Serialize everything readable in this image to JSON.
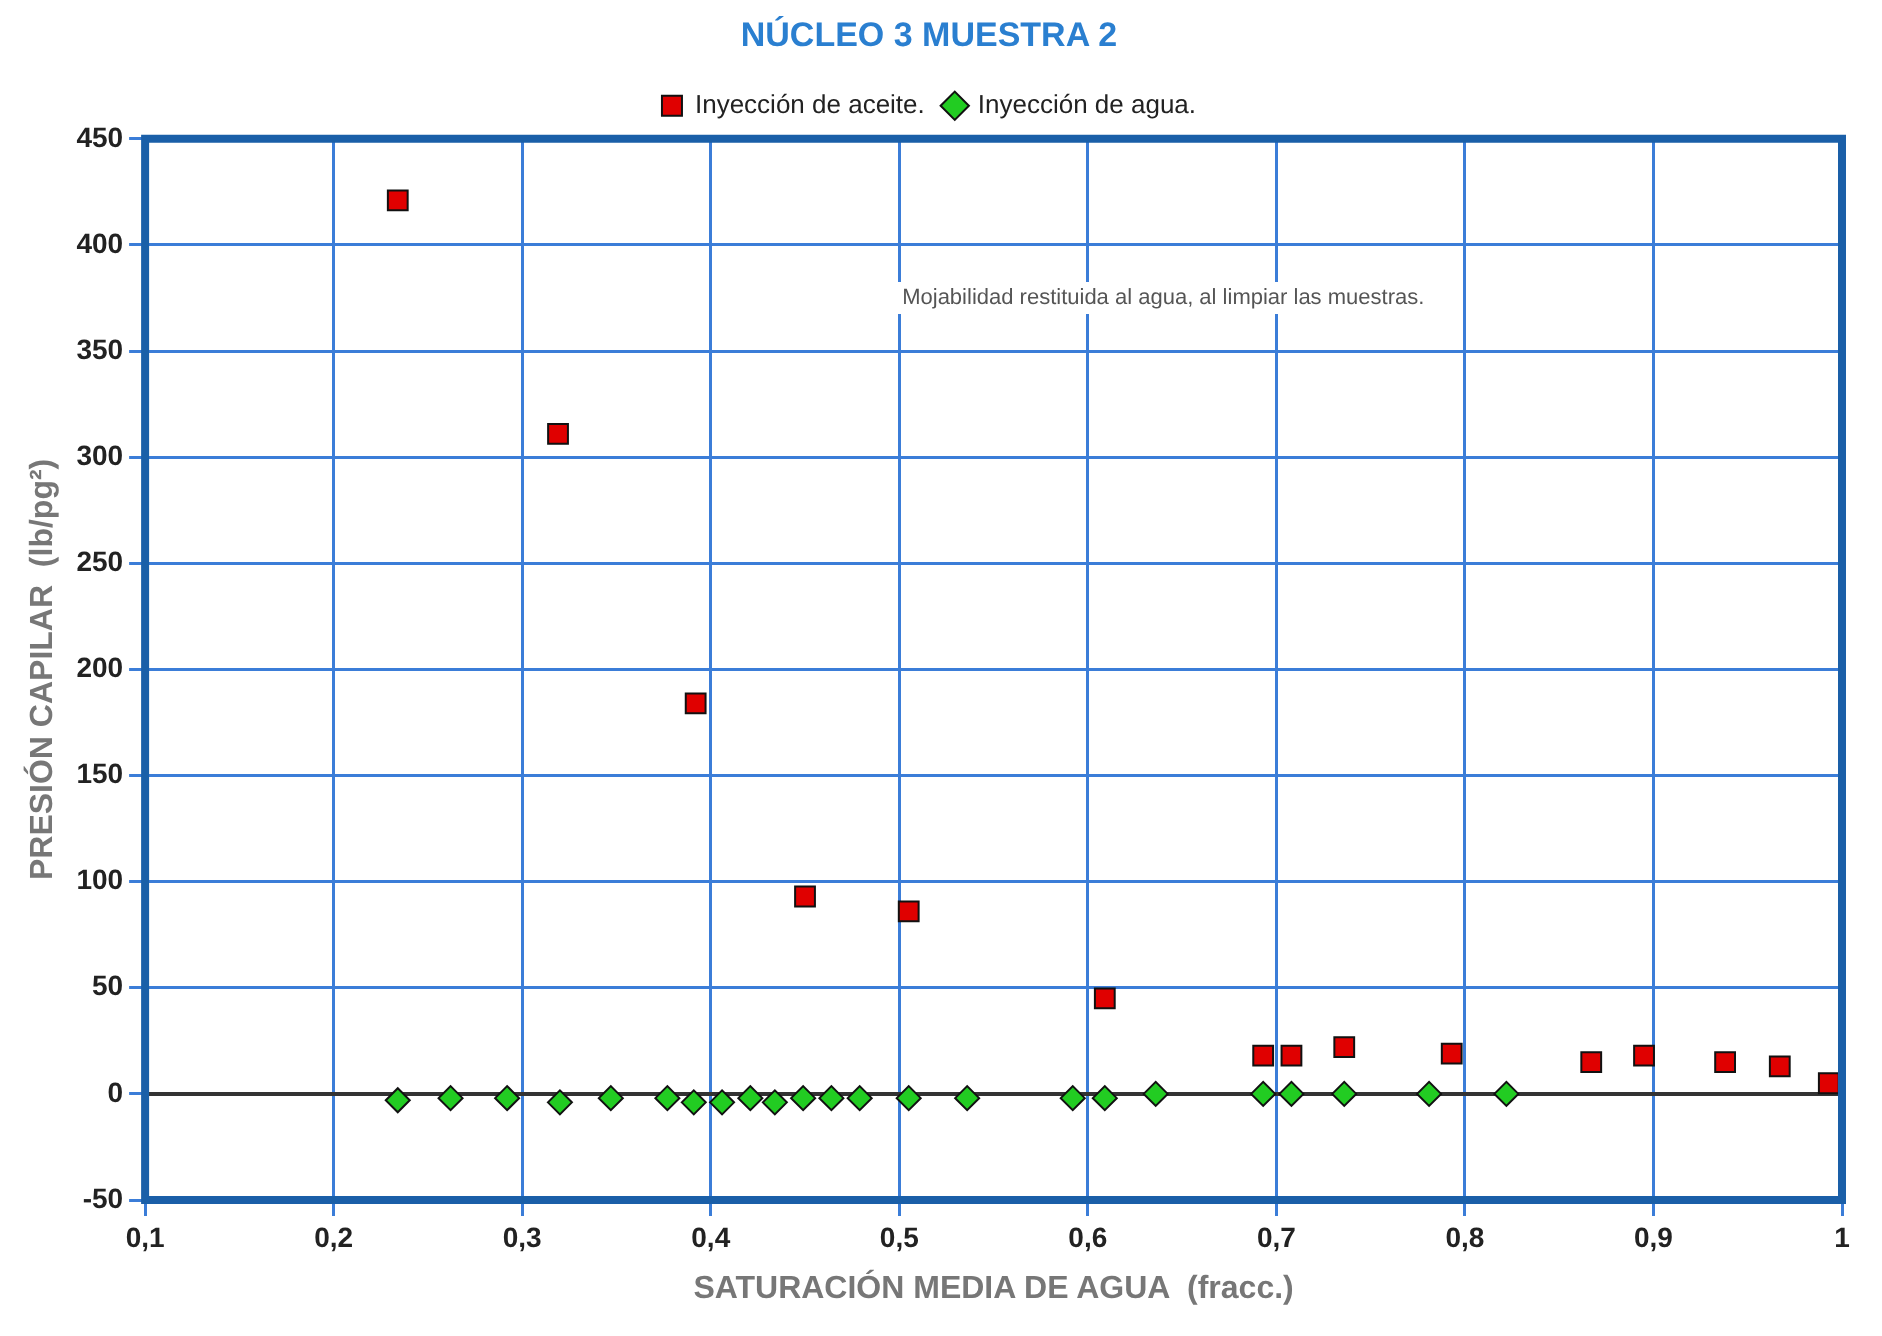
{
  "chart_data": {
    "type": "scatter",
    "title": "NÚCLEO 3 MUESTRA 2",
    "xlabel": "SATURACIÓN MEDIA DE AGUA  (fracc.)",
    "ylabel": "PRESIÓN CAPILAR  (lb/pg²)",
    "annotations": [
      "Mojabilidad restituida al agua, al limpiar las muestras."
    ],
    "series": [
      {
        "name": "Inyección de aceite.",
        "color": "#e00000",
        "marker": "square",
        "x": [
          0.234,
          0.319,
          0.392,
          0.45,
          0.505,
          0.609,
          0.693,
          0.708,
          0.736,
          0.793,
          0.867,
          0.895,
          0.938,
          0.967,
          0.993
        ],
        "values": [
          421,
          311,
          184,
          93,
          86,
          45,
          18,
          18,
          22,
          19,
          15,
          18,
          15,
          13,
          5
        ]
      },
      {
        "name": "Inyección de agua.",
        "color": "#22cc22",
        "marker": "diamond",
        "x": [
          0.234,
          0.262,
          0.292,
          0.32,
          0.347,
          0.377,
          0.391,
          0.406,
          0.421,
          0.434,
          0.449,
          0.464,
          0.479,
          0.505,
          0.536,
          0.592,
          0.609,
          0.636,
          0.693,
          0.708,
          0.736,
          0.781,
          0.822
        ],
        "values": [
          -3,
          -2,
          -2,
          -4,
          -2,
          -2,
          -4,
          -4,
          -2,
          -4,
          -2,
          -2,
          -2,
          -2,
          -2,
          -2,
          -2,
          0,
          0,
          0,
          0,
          0,
          0
        ]
      }
    ],
    "xlim": [
      0.1,
      1
    ],
    "xticks": [
      {
        "value": 0.1,
        "label": "0,1"
      },
      {
        "value": 0.2,
        "label": "0,2"
      },
      {
        "value": 0.3,
        "label": "0,3"
      },
      {
        "value": 0.4,
        "label": "0,4"
      },
      {
        "value": 0.5,
        "label": "0,5"
      },
      {
        "value": 0.6,
        "label": "0,6"
      },
      {
        "value": 0.7,
        "label": "0,7"
      },
      {
        "value": 0.8,
        "label": "0,8"
      },
      {
        "value": 0.9,
        "label": "0,9"
      },
      1
    ],
    "ylim": [
      -50,
      450
    ],
    "yticks": [
      -50,
      0,
      50,
      100,
      150,
      200,
      250,
      300,
      350,
      400,
      450
    ],
    "ref_lines": [
      {
        "axis": "y",
        "value": 0,
        "color": "#333333"
      }
    ],
    "grid": true,
    "legend": "top"
  }
}
